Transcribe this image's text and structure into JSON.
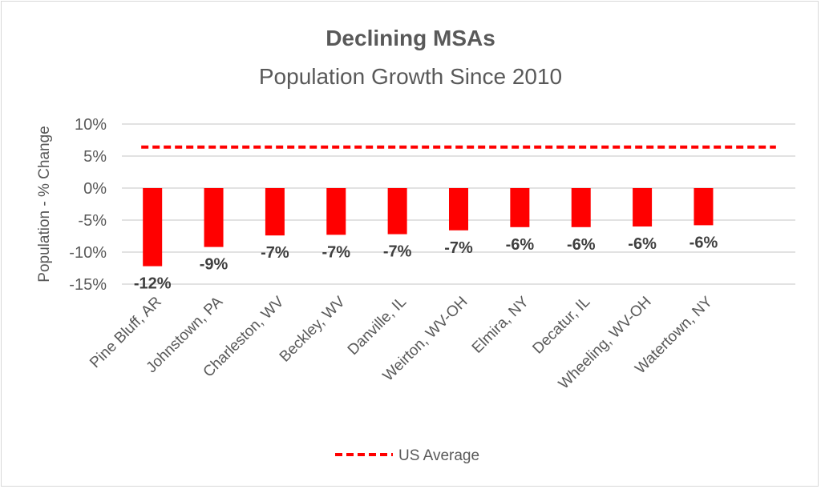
{
  "chart_data": {
    "type": "bar",
    "title": "Declining MSAs",
    "subtitle": "Population Growth Since 2010",
    "xlabel": "",
    "ylabel": "Population - % Change",
    "ylim": [
      -15,
      10
    ],
    "yticks": [
      10,
      5,
      0,
      -5,
      -10,
      -15
    ],
    "ytick_labels": [
      "10%",
      "5%",
      "0%",
      "-5%",
      "-10%",
      "-15%"
    ],
    "grid": true,
    "categories": [
      "Pine Bluff, AR",
      "Johnstown, PA",
      "Charleston, WV",
      "Beckley, WV",
      "Danville, IL",
      "Weirton, WV-OH",
      "Elmira, NY",
      "Decatur, IL",
      "Wheeling, WV-OH",
      "Watertown, NY"
    ],
    "values": [
      -12.2,
      -9.2,
      -7.4,
      -7.3,
      -7.2,
      -6.6,
      -6.1,
      -6.1,
      -6.0,
      -5.8
    ],
    "data_labels": [
      "-12%",
      "-9%",
      "-7%",
      "-7%",
      "-7%",
      "-7%",
      "-6%",
      "-6%",
      "-6%",
      "-6%"
    ],
    "bar_color": "#ff0000",
    "reference_line": {
      "name": "US Average",
      "value": 6.4,
      "color": "#ff0000",
      "style": "dashed"
    },
    "legend_placement": "bottom"
  }
}
